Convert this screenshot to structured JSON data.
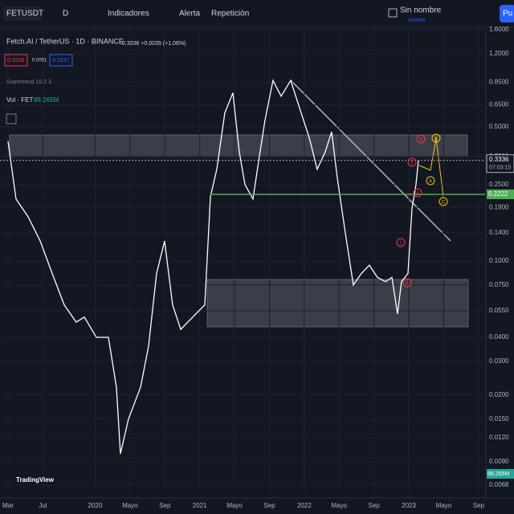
{
  "toolbar": {
    "symbol": "FETUSDT",
    "interval": "D",
    "indicators": "Indicadores",
    "alert": "Alerta",
    "replay": "Repetición",
    "layout_name": "Sin nombre",
    "save": "Guardar",
    "publish": "Pu"
  },
  "chart_data": {
    "type": "line",
    "title": "Fetch.AI / TetherUS · 1D · BINANCE",
    "quote": "0.3336 +0.0035 (+1.06%)",
    "bid": "0.3336",
    "spread": "0.0001",
    "ask": "0.3337",
    "indicator": "Supertrend 10 2 3",
    "volume_label": "Vol · FET",
    "volume_value": "88.265M",
    "countdown": "07:03:15",
    "brand": "TradingView",
    "color": "#ffffff",
    "log_scale": true,
    "x": [
      0,
      0.92,
      2.3,
      3.69,
      5.07,
      6.45,
      7.83,
      8.76,
      10.14,
      11.52,
      12.44,
      12.9,
      13.82,
      15.21,
      16.13,
      17.05,
      17.97,
      18.89,
      19.82,
      21.2,
      22.58,
      23.23,
      23.96,
      24.88,
      25.81,
      26.54,
      27.19,
      28.11,
      28.76,
      29.49,
      30.41,
      31.34,
      32.44,
      33.64,
      34.56,
      35.48,
      36.41,
      37.14,
      37.79,
      38.71,
      39.63,
      40.55,
      41.47,
      42.4,
      43.32,
      44.06,
      44.7,
      45.16,
      45.9,
      46.36,
      46.82,
      47.1
    ],
    "values": [
      0.42,
      0.21,
      0.17,
      0.127,
      0.086,
      0.059,
      0.048,
      0.051,
      0.04,
      0.04,
      0.022,
      0.0099,
      0.015,
      0.022,
      0.036,
      0.086,
      0.127,
      0.059,
      0.044,
      0.051,
      0.059,
      0.216,
      0.3,
      0.59,
      0.75,
      0.37,
      0.25,
      0.21,
      0.33,
      0.54,
      0.87,
      0.72,
      0.87,
      0.59,
      0.44,
      0.3,
      0.37,
      0.47,
      0.27,
      0.14,
      0.075,
      0.086,
      0.095,
      0.082,
      0.078,
      0.082,
      0.053,
      0.078,
      0.086,
      0.187,
      0.25,
      0.3336
    ],
    "xlim": [
      -0.92,
      54.75
    ],
    "xticks": [
      {
        "value": 0,
        "label": "Mar"
      },
      {
        "value": 4,
        "label": "Jul"
      },
      {
        "value": 10,
        "label": "2020"
      },
      {
        "value": 14,
        "label": "Mayo"
      },
      {
        "value": 18,
        "label": "Sep"
      },
      {
        "value": 22,
        "label": "2021"
      },
      {
        "value": 26,
        "label": "Mayo"
      },
      {
        "value": 30,
        "label": "Sep"
      },
      {
        "value": 34,
        "label": "2022"
      },
      {
        "value": 38,
        "label": "Mayo"
      },
      {
        "value": 42,
        "label": "Sep"
      },
      {
        "value": 46,
        "label": "2023"
      },
      {
        "value": 50,
        "label": "Mayo"
      },
      {
        "value": 54,
        "label": "Sep"
      }
    ],
    "ylim": [
      0.0063,
      1.71
    ],
    "yticks": [
      {
        "value": 1.6,
        "label": "1.6000"
      },
      {
        "value": 1.2,
        "label": "1.2000"
      },
      {
        "value": 0.85,
        "label": "0.8500"
      },
      {
        "value": 0.65,
        "label": "0.6500"
      },
      {
        "value": 0.5,
        "label": "0.5000"
      },
      {
        "value": 0.35,
        "label": "0.3500"
      },
      {
        "value": 0.25,
        "label": "0.2500"
      },
      {
        "value": 0.19,
        "label": "0.1900"
      },
      {
        "value": 0.14,
        "label": "0.1400"
      },
      {
        "value": 0.1,
        "label": "0.1000"
      },
      {
        "value": 0.075,
        "label": "0.0750"
      },
      {
        "value": 0.055,
        "label": "0.0550"
      },
      {
        "value": 0.04,
        "label": "0.0400"
      },
      {
        "value": 0.03,
        "label": "0.0300"
      },
      {
        "value": 0.02,
        "label": "0.0200"
      },
      {
        "value": 0.015,
        "label": "0.0150"
      },
      {
        "value": 0.012,
        "label": "0.0120"
      },
      {
        "value": 0.009,
        "label": "0.0090"
      },
      {
        "value": 0.0068,
        "label": "0.0068"
      }
    ],
    "last_price": 0.3336,
    "support_level": 0.2222,
    "support_color": "#4caf50",
    "wave_labels": [
      "1",
      "2",
      "3",
      "4",
      "5"
    ],
    "correction_labels": [
      "A",
      "B",
      "C"
    ]
  }
}
